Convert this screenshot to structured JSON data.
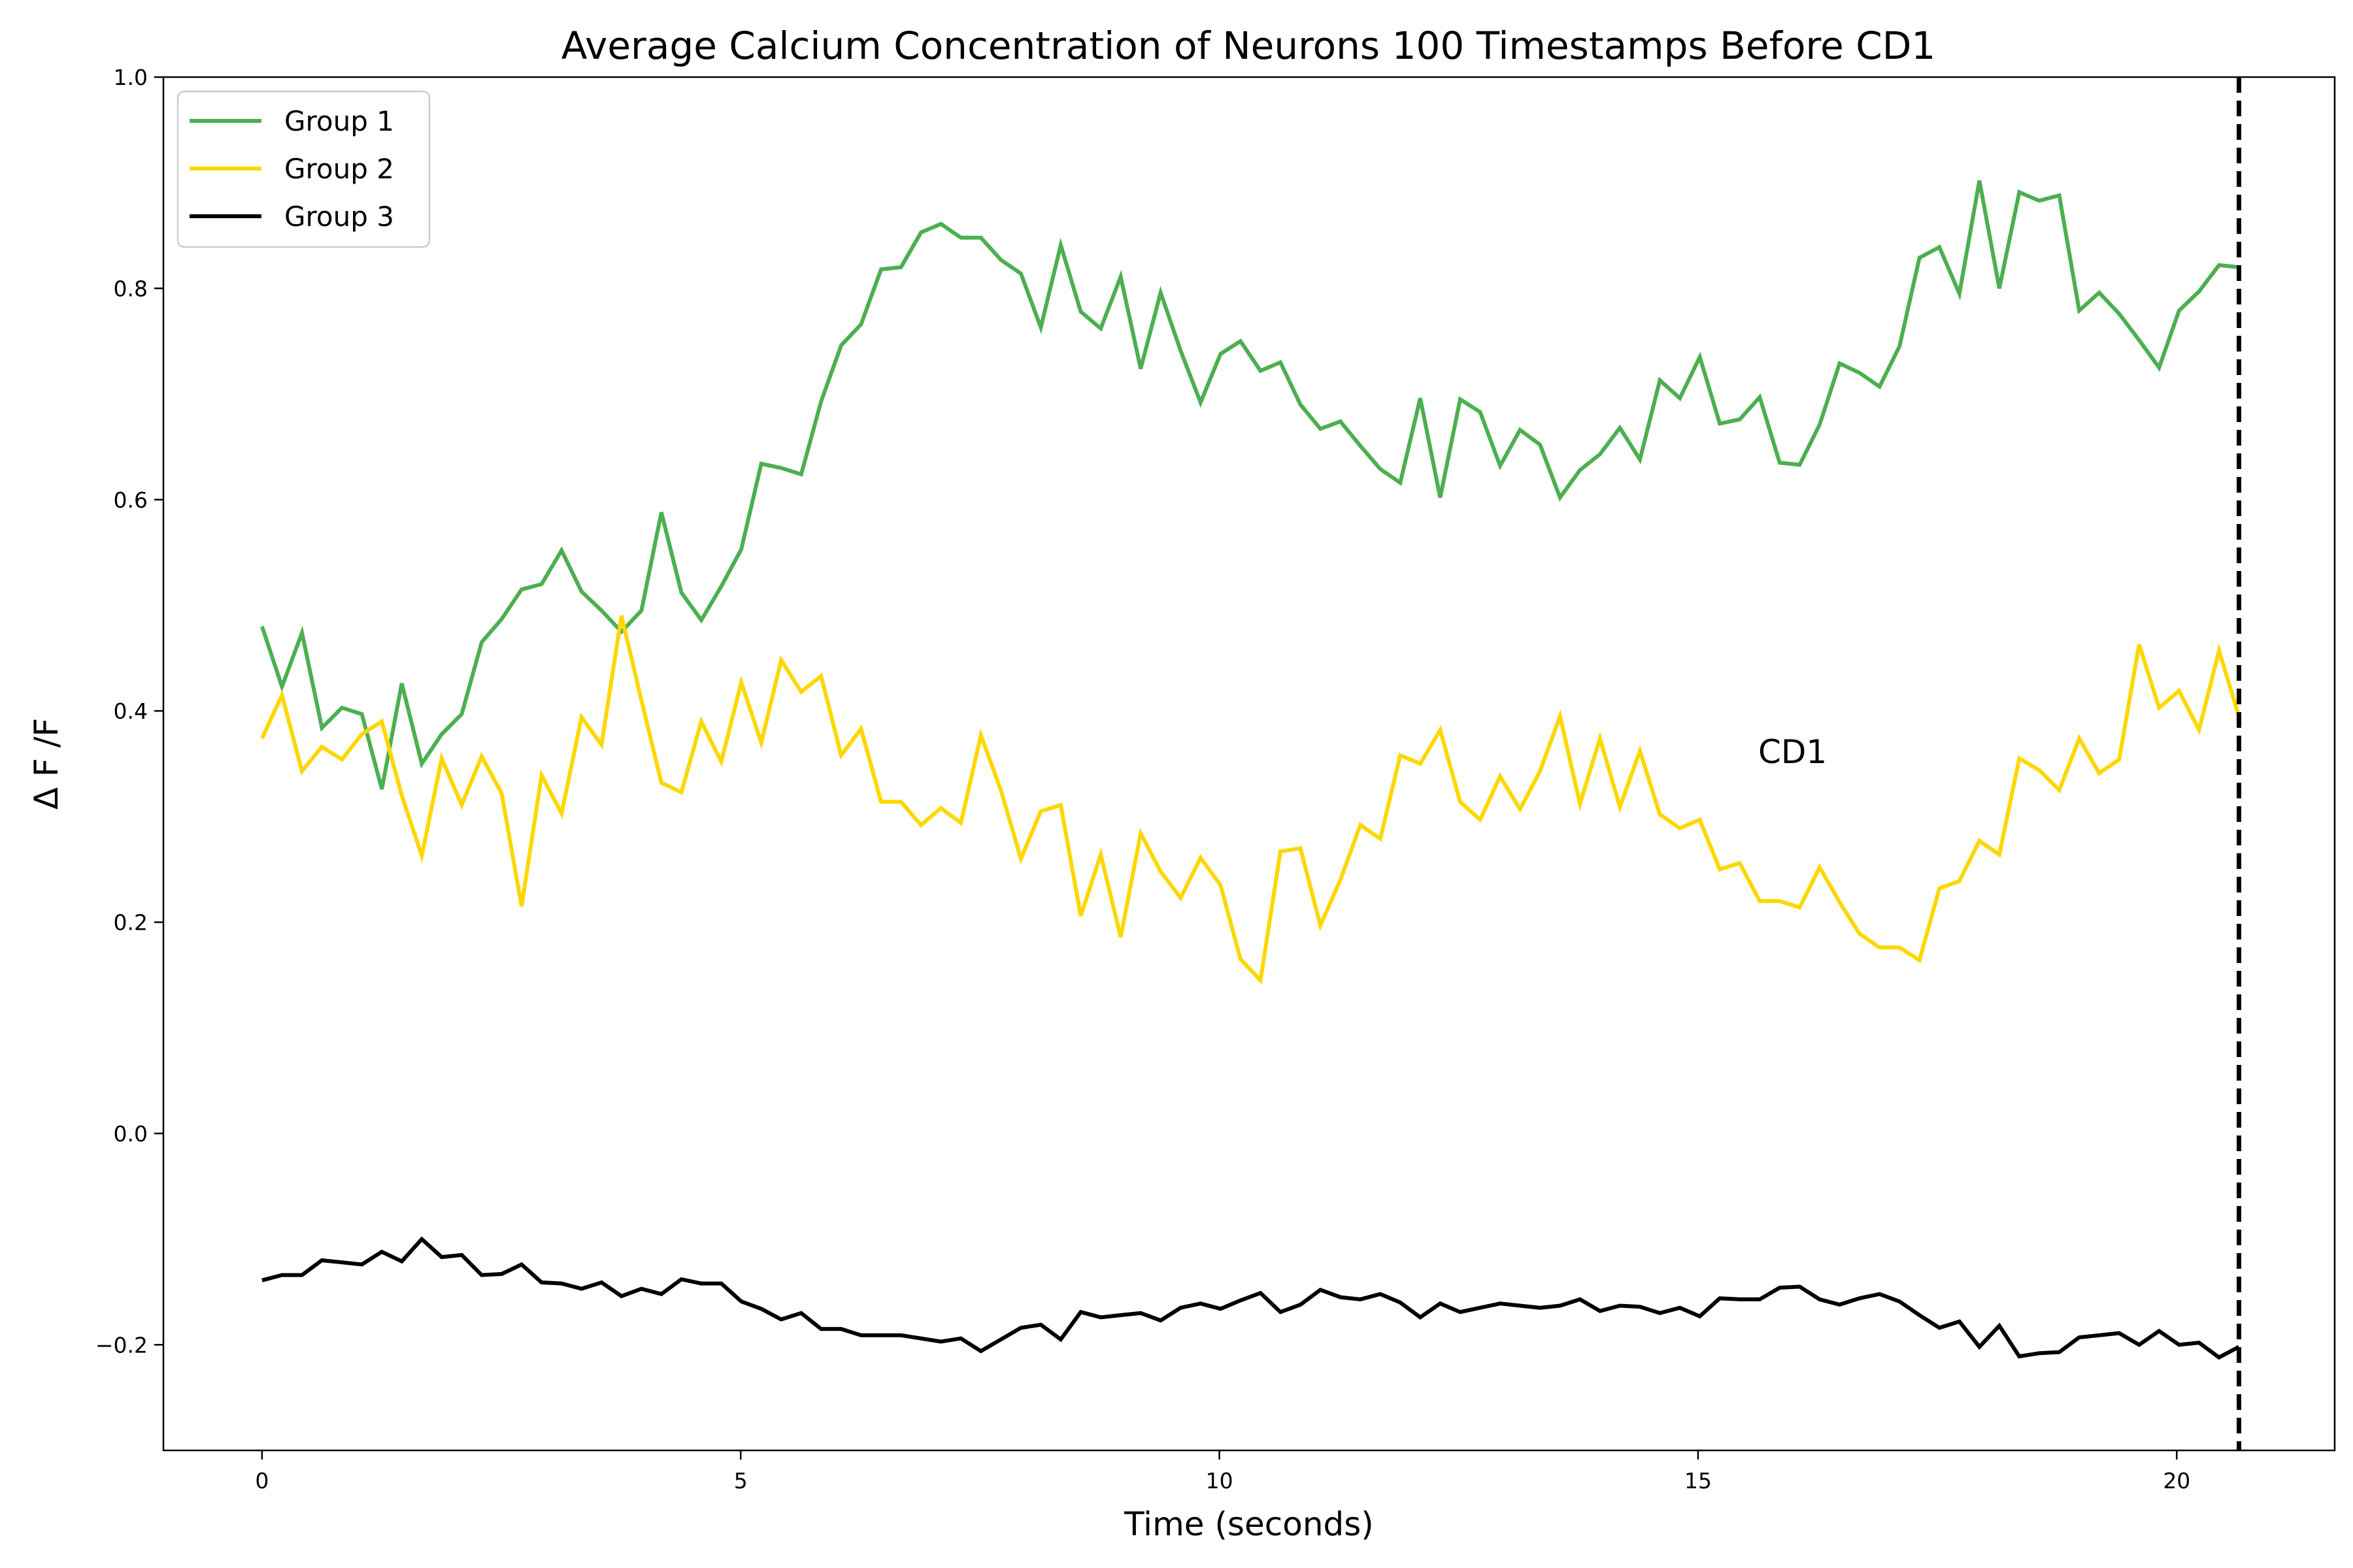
{
  "chart_data": {
    "type": "line",
    "title": "Average Calcium Concentration of Neurons 100 Timestamps Before CD1",
    "xlabel": "Time (seconds)",
    "ylabel": "Δ F /F",
    "xlim": [
      -1.03,
      21.65
    ],
    "ylim": [
      -0.3,
      1.0
    ],
    "xticks": [
      0,
      5,
      10,
      15,
      20
    ],
    "xtick_labels": [
      "0",
      "5",
      "10",
      "15",
      "20"
    ],
    "yticks": [
      -0.2,
      0.0,
      0.2,
      0.4,
      0.6,
      0.8,
      1.0
    ],
    "ytick_labels": [
      "−0.2",
      "0.0",
      "0.2",
      "0.4",
      "0.6",
      "0.8",
      "1.0"
    ],
    "grid": false,
    "legend_position": "top-left",
    "vline": {
      "x": 20.65,
      "style": "dashed",
      "color": "#000000"
    },
    "annotation": {
      "text": "CD1",
      "x": 16.0,
      "y": 0.36
    },
    "x": [
      0,
      0.2086,
      0.4172,
      0.6258,
      0.8343,
      1.0429,
      1.2515,
      1.4601,
      1.6687,
      1.8773,
      2.0859,
      2.2944,
      2.503,
      2.7116,
      2.9202,
      3.1288,
      3.3374,
      3.546,
      3.7545,
      3.9631,
      4.1717,
      4.3803,
      4.5889,
      4.7975,
      5.0061,
      5.2146,
      5.4232,
      5.6318,
      5.8404,
      6.049,
      6.2576,
      6.4662,
      6.6747,
      6.8833,
      7.0919,
      7.3005,
      7.5091,
      7.7177,
      7.9263,
      8.1348,
      8.3434,
      8.552,
      8.7606,
      8.9692,
      9.1778,
      9.3864,
      9.5949,
      9.8035,
      10.0121,
      10.2207,
      10.4293,
      10.6379,
      10.8465,
      11.055,
      11.2636,
      11.4722,
      11.6808,
      11.8894,
      12.098,
      12.3066,
      12.5151,
      12.7237,
      12.9323,
      13.1409,
      13.3495,
      13.5581,
      13.7667,
      13.9752,
      14.1838,
      14.3924,
      14.601,
      14.8096,
      15.0182,
      15.2268,
      15.4353,
      15.6439,
      15.8525,
      16.0611,
      16.2697,
      16.4783,
      16.6869,
      16.8954,
      17.104,
      17.3126,
      17.5212,
      17.7298,
      17.9384,
      18.147,
      18.3555,
      18.5641,
      18.7727,
      18.9813,
      19.1899,
      19.3985,
      19.6071,
      19.8156,
      20.0242,
      20.2328,
      20.4414,
      20.65
    ],
    "series": [
      {
        "name": "Group 1",
        "color": "#4caf50",
        "values": [
          0.48,
          0.423,
          0.474,
          0.384,
          0.403,
          0.397,
          0.326,
          0.426,
          0.35,
          0.378,
          0.397,
          0.465,
          0.487,
          0.515,
          0.52,
          0.552,
          0.513,
          0.495,
          0.475,
          0.495,
          0.588,
          0.512,
          0.486,
          0.518,
          0.553,
          0.634,
          0.63,
          0.624,
          0.693,
          0.746,
          0.766,
          0.818,
          0.82,
          0.853,
          0.861,
          0.848,
          0.848,
          0.827,
          0.814,
          0.763,
          0.841,
          0.778,
          0.762,
          0.811,
          0.724,
          0.796,
          0.741,
          0.692,
          0.738,
          0.75,
          0.722,
          0.73,
          0.69,
          0.667,
          0.674,
          0.651,
          0.629,
          0.616,
          0.696,
          0.602,
          0.695,
          0.683,
          0.632,
          0.666,
          0.652,
          0.602,
          0.628,
          0.643,
          0.668,
          0.638,
          0.713,
          0.696,
          0.735,
          0.672,
          0.676,
          0.697,
          0.635,
          0.633,
          0.671,
          0.729,
          0.72,
          0.707,
          0.745,
          0.829,
          0.839,
          0.795,
          0.902,
          0.8,
          0.891,
          0.883,
          0.888,
          0.779,
          0.796,
          0.776,
          0.751,
          0.725,
          0.779,
          0.797,
          0.822,
          0.82
        ]
      },
      {
        "name": "Group 2",
        "color": "#ffd700",
        "values": [
          0.374,
          0.415,
          0.343,
          0.366,
          0.354,
          0.378,
          0.39,
          0.32,
          0.263,
          0.355,
          0.311,
          0.357,
          0.322,
          0.215,
          0.339,
          0.303,
          0.394,
          0.368,
          0.49,
          0.41,
          0.332,
          0.323,
          0.39,
          0.352,
          0.427,
          0.37,
          0.448,
          0.418,
          0.433,
          0.358,
          0.383,
          0.314,
          0.314,
          0.292,
          0.308,
          0.294,
          0.377,
          0.325,
          0.26,
          0.305,
          0.311,
          0.206,
          0.264,
          0.186,
          0.284,
          0.248,
          0.223,
          0.261,
          0.235,
          0.165,
          0.145,
          0.267,
          0.27,
          0.197,
          0.24,
          0.292,
          0.279,
          0.358,
          0.35,
          0.382,
          0.314,
          0.297,
          0.338,
          0.307,
          0.343,
          0.395,
          0.312,
          0.374,
          0.309,
          0.362,
          0.302,
          0.289,
          0.297,
          0.25,
          0.256,
          0.22,
          0.22,
          0.214,
          0.252,
          0.219,
          0.189,
          0.176,
          0.176,
          0.164,
          0.232,
          0.239,
          0.277,
          0.264,
          0.355,
          0.344,
          0.325,
          0.374,
          0.341,
          0.354,
          0.463,
          0.403,
          0.419,
          0.382,
          0.457,
          0.395
        ]
      },
      {
        "name": "Group 3",
        "color": "#000000",
        "values": [
          -0.139,
          -0.134,
          -0.134,
          -0.12,
          -0.122,
          -0.124,
          -0.112,
          -0.121,
          -0.1,
          -0.117,
          -0.115,
          -0.134,
          -0.133,
          -0.124,
          -0.141,
          -0.142,
          -0.147,
          -0.141,
          -0.154,
          -0.147,
          -0.152,
          -0.138,
          -0.142,
          -0.142,
          -0.159,
          -0.166,
          -0.176,
          -0.17,
          -0.185,
          -0.185,
          -0.191,
          -0.191,
          -0.191,
          -0.194,
          -0.197,
          -0.194,
          -0.206,
          -0.195,
          -0.184,
          -0.181,
          -0.195,
          -0.169,
          -0.174,
          -0.172,
          -0.17,
          -0.177,
          -0.165,
          -0.161,
          -0.166,
          -0.158,
          -0.151,
          -0.169,
          -0.162,
          -0.148,
          -0.155,
          -0.157,
          -0.152,
          -0.16,
          -0.174,
          -0.161,
          -0.169,
          -0.165,
          -0.161,
          -0.163,
          -0.165,
          -0.163,
          -0.157,
          -0.168,
          -0.163,
          -0.164,
          -0.17,
          -0.165,
          -0.173,
          -0.156,
          -0.157,
          -0.157,
          -0.146,
          -0.145,
          -0.157,
          -0.162,
          -0.156,
          -0.152,
          -0.159,
          -0.172,
          -0.184,
          -0.178,
          -0.202,
          -0.182,
          -0.211,
          -0.208,
          -0.207,
          -0.193,
          -0.191,
          -0.189,
          -0.2,
          -0.187,
          -0.2,
          -0.198,
          -0.212,
          -0.202
        ]
      }
    ]
  }
}
